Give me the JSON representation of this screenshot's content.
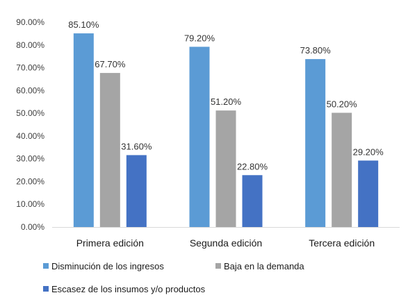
{
  "chart_data": {
    "type": "bar",
    "categories": [
      "Primera edición",
      "Segunda edición",
      "Tercera edición"
    ],
    "series": [
      {
        "name": "Disminución de los ingresos",
        "values": [
          85.1,
          79.2,
          73.8
        ],
        "labels": [
          "85.10%",
          "79.20%",
          "73.80%"
        ],
        "color": "#5b9bd5"
      },
      {
        "name": "Baja en la demanda",
        "values": [
          67.7,
          51.2,
          50.2
        ],
        "labels": [
          "67.70%",
          "51.20%",
          "50.20%"
        ],
        "color": "#a5a5a5"
      },
      {
        "name": "Escasez de los insumos y/o productos",
        "values": [
          31.6,
          22.8,
          29.2
        ],
        "labels": [
          "31.60%",
          "22.80%",
          "29.20%"
        ],
        "color": "#4472c4"
      }
    ],
    "yticks": [
      "0.00%",
      "10.00%",
      "20.00%",
      "30.00%",
      "40.00%",
      "50.00%",
      "60.00%",
      "70.00%",
      "80.00%",
      "90.00%"
    ],
    "ylim": [
      0,
      90
    ],
    "title": "",
    "xlabel": "",
    "ylabel": "",
    "grid": false,
    "legend_position": "bottom"
  }
}
